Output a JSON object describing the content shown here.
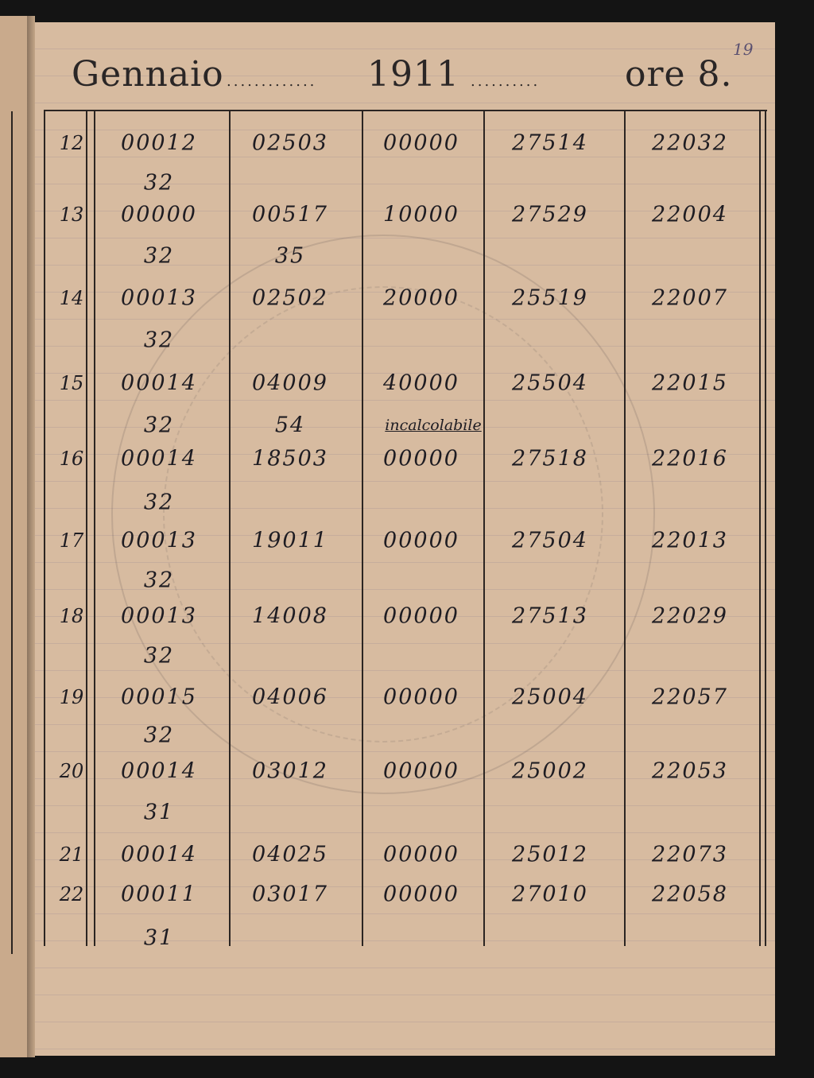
{
  "header": {
    "month": "Gennaio",
    "year": "1911",
    "time_label": "ore 8.",
    "page_number": "19"
  },
  "rows": [
    {
      "day": "12",
      "c1": "00012",
      "c1_sub": "32",
      "c2": "02503",
      "c2_sub": "",
      "c3": "00000",
      "c3_sub": "",
      "c4": "27514",
      "c5": "22032"
    },
    {
      "day": "13",
      "c1": "00000",
      "c1_sub": "32",
      "c2": "00517",
      "c2_sub": "35",
      "c3": "10000",
      "c3_sub": "",
      "c4": "27529",
      "c5": "22004"
    },
    {
      "day": "14",
      "c1": "00013",
      "c1_sub": "32",
      "c2": "02502",
      "c2_sub": "",
      "c3": "20000",
      "c3_sub": "",
      "c4": "25519",
      "c5": "22007"
    },
    {
      "day": "15",
      "c1": "00014",
      "c1_sub": "32",
      "c2": "04009",
      "c2_sub": "54",
      "c3": "40000",
      "c3_sub": "incalcolabile",
      "c4": "25504",
      "c5": "22015"
    },
    {
      "day": "16",
      "c1": "00014",
      "c1_sub": "32",
      "c2": "18503",
      "c2_sub": "",
      "c3": "00000",
      "c3_sub": "",
      "c4": "27518",
      "c5": "22016"
    },
    {
      "day": "17",
      "c1": "00013",
      "c1_sub": "32",
      "c2": "19011",
      "c2_sub": "",
      "c3": "00000",
      "c3_sub": "",
      "c4": "27504",
      "c5": "22013"
    },
    {
      "day": "18",
      "c1": "00013",
      "c1_sub": "32",
      "c2": "14008",
      "c2_sub": "",
      "c3": "00000",
      "c3_sub": "",
      "c4": "27513",
      "c5": "22029"
    },
    {
      "day": "19",
      "c1": "00015",
      "c1_sub": "32",
      "c2": "04006",
      "c2_sub": "",
      "c3": "00000",
      "c3_sub": "",
      "c4": "25004",
      "c5": "22057"
    },
    {
      "day": "20",
      "c1": "00014",
      "c1_sub": "31",
      "c2": "03012",
      "c2_sub": "",
      "c3": "00000",
      "c3_sub": "",
      "c4": "25002",
      "c5": "22053"
    },
    {
      "day": "21",
      "c1": "00014",
      "c1_sub": "",
      "c2": "04025",
      "c2_sub": "",
      "c3": "00000",
      "c3_sub": "",
      "c4": "25012",
      "c5": "22073"
    },
    {
      "day": "22",
      "c1": "00011",
      "c1_sub": "31",
      "c2": "03017",
      "c2_sub": "",
      "c3": "00000",
      "c3_sub": "",
      "c4": "27010",
      "c5": "22058"
    }
  ]
}
